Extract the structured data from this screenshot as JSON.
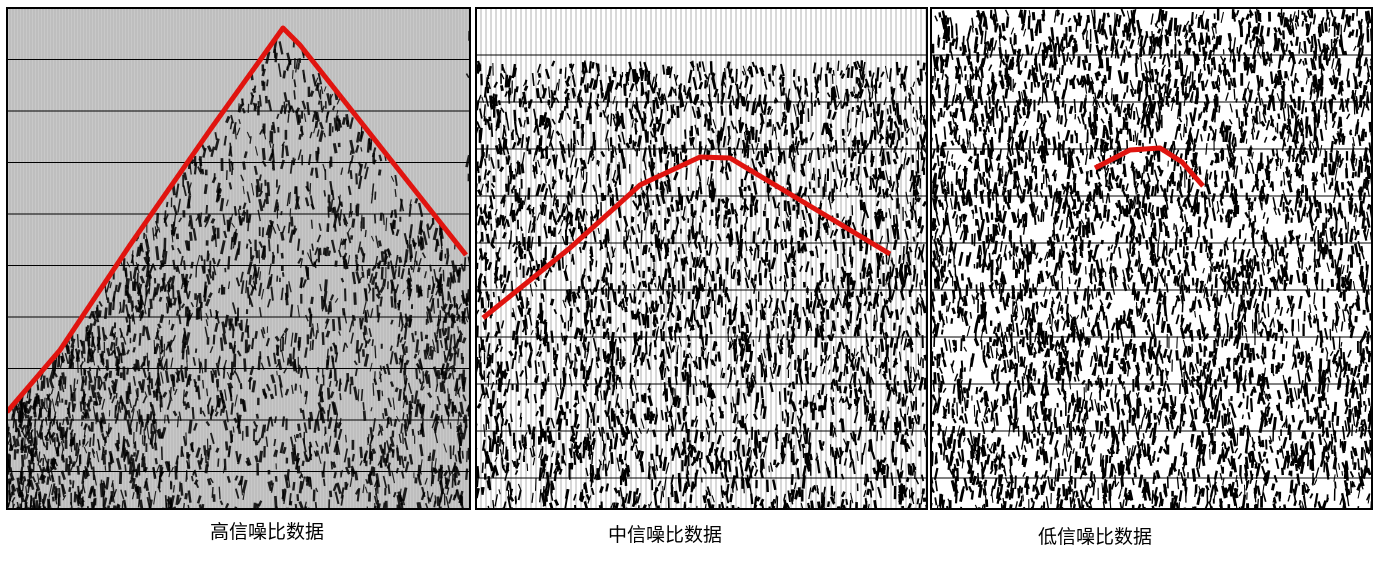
{
  "panels": [
    {
      "caption": "高信噪比数据"
    },
    {
      "caption": "中信噪比数据"
    },
    {
      "caption": "低信噪比数据"
    }
  ]
}
